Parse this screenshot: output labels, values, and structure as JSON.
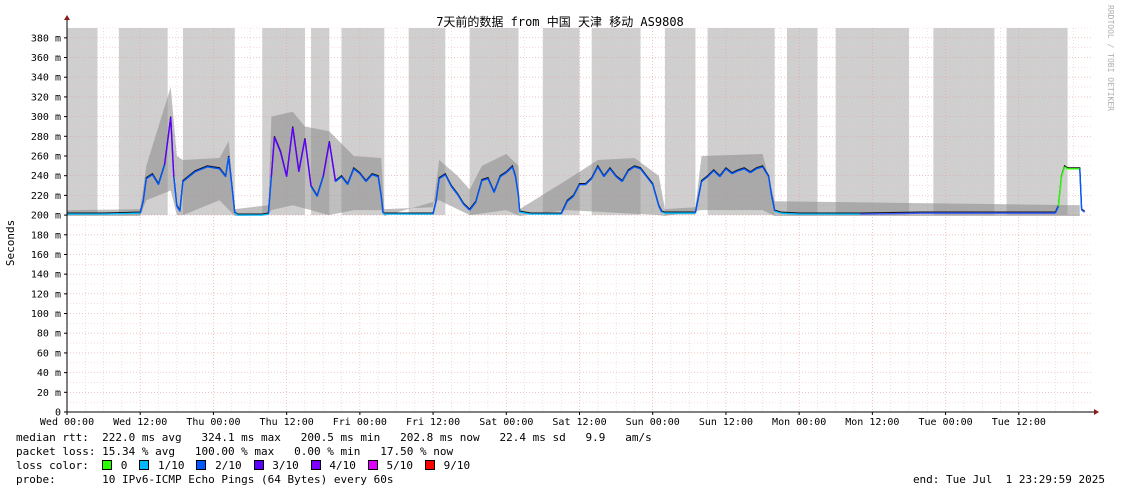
{
  "chart_data": {
    "type": "line",
    "title": "7天前的数据 from 中国 天津 移动 AS9808",
    "ylabel": "Seconds",
    "watermark": "RRDTOOL / TOBI OETIKER",
    "ylim": [
      0,
      380
    ],
    "y_unit": "m",
    "y_ticks": [
      "0",
      "20 m",
      "40 m",
      "60 m",
      "80 m",
      "100 m",
      "120 m",
      "140 m",
      "160 m",
      "180 m",
      "200 m",
      "220 m",
      "240 m",
      "260 m",
      "280 m",
      "300 m",
      "320 m",
      "340 m",
      "360 m",
      "380 m"
    ],
    "x_hours": 168,
    "x_ticks": [
      "Wed 00:00",
      "Wed 12:00",
      "Thu 00:00",
      "Thu 12:00",
      "Fri 00:00",
      "Fri 12:00",
      "Sat 00:00",
      "Sat 12:00",
      "Sun 00:00",
      "Sun 12:00",
      "Mon 00:00",
      "Mon 12:00",
      "Tue 00:00",
      "Tue 12:00"
    ],
    "series": [
      {
        "name": "median rtt",
        "unit": "ms",
        "points": [
          [
            0,
            202
          ],
          [
            6,
            202
          ],
          [
            12,
            203
          ],
          [
            12.5,
            215
          ],
          [
            13,
            238
          ],
          [
            14,
            242
          ],
          [
            15,
            232
          ],
          [
            16,
            252
          ],
          [
            17,
            300
          ],
          [
            17.5,
            240
          ],
          [
            18,
            210
          ],
          [
            18.5,
            205
          ],
          [
            19,
            235
          ],
          [
            21,
            245
          ],
          [
            23,
            250
          ],
          [
            25,
            248
          ],
          [
            26,
            240
          ],
          [
            26.5,
            260
          ],
          [
            27,
            232
          ],
          [
            27.5,
            203
          ],
          [
            28,
            201
          ],
          [
            32,
            201
          ],
          [
            33,
            202
          ],
          [
            33.5,
            240
          ],
          [
            34,
            280
          ],
          [
            35,
            265
          ],
          [
            36,
            240
          ],
          [
            37,
            290
          ],
          [
            38,
            245
          ],
          [
            39,
            278
          ],
          [
            40,
            230
          ],
          [
            41,
            220
          ],
          [
            42,
            240
          ],
          [
            43,
            275
          ],
          [
            44,
            235
          ],
          [
            45,
            240
          ],
          [
            46,
            232
          ],
          [
            47,
            248
          ],
          [
            48,
            243
          ],
          [
            49,
            235
          ],
          [
            50,
            242
          ],
          [
            51,
            240
          ],
          [
            51.5,
            220
          ],
          [
            51.8,
            203
          ],
          [
            52,
            202
          ],
          [
            60,
            202
          ],
          [
            60.5,
            215
          ],
          [
            61,
            238
          ],
          [
            62,
            242
          ],
          [
            63,
            230
          ],
          [
            64,
            222
          ],
          [
            65,
            212
          ],
          [
            66,
            206
          ],
          [
            67,
            214
          ],
          [
            68,
            236
          ],
          [
            69,
            238
          ],
          [
            70,
            224
          ],
          [
            71,
            240
          ],
          [
            72,
            244
          ],
          [
            73,
            250
          ],
          [
            73.5,
            240
          ],
          [
            74,
            220
          ],
          [
            74.2,
            204
          ],
          [
            76,
            202
          ],
          [
            81,
            202
          ],
          [
            82,
            215
          ],
          [
            83,
            220
          ],
          [
            84,
            232
          ],
          [
            85,
            232
          ],
          [
            86,
            238
          ],
          [
            87,
            250
          ],
          [
            88,
            240
          ],
          [
            89,
            248
          ],
          [
            90,
            240
          ],
          [
            91,
            235
          ],
          [
            92,
            246
          ],
          [
            93,
            250
          ],
          [
            94,
            248
          ],
          [
            95,
            240
          ],
          [
            96,
            232
          ],
          [
            97,
            210
          ],
          [
            97.5,
            204
          ],
          [
            98,
            203
          ],
          [
            103,
            203
          ],
          [
            104,
            235
          ],
          [
            105,
            240
          ],
          [
            106,
            246
          ],
          [
            107,
            240
          ],
          [
            108,
            248
          ],
          [
            109,
            243
          ],
          [
            110,
            246
          ],
          [
            111,
            248
          ],
          [
            112,
            244
          ],
          [
            113,
            248
          ],
          [
            114,
            250
          ],
          [
            115,
            240
          ],
          [
            115.5,
            220
          ],
          [
            116,
            205
          ],
          [
            117,
            203
          ],
          [
            120,
            202
          ],
          [
            130,
            202
          ],
          [
            140,
            203
          ],
          [
            145,
            203
          ],
          [
            150,
            203
          ],
          [
            162,
            203
          ],
          [
            162.5,
            210
          ],
          [
            163,
            240
          ],
          [
            163.5,
            250
          ],
          [
            164,
            248
          ],
          [
            165,
            248
          ],
          [
            166,
            248
          ],
          [
            166.3,
            206
          ],
          [
            166.8,
            204
          ]
        ]
      }
    ],
    "smoke_max": [
      [
        0,
        205
      ],
      [
        12,
        206
      ],
      [
        13,
        250
      ],
      [
        17,
        330
      ],
      [
        18,
        260
      ],
      [
        19,
        256
      ],
      [
        25,
        258
      ],
      [
        26.5,
        275
      ],
      [
        27.5,
        206
      ],
      [
        33,
        210
      ],
      [
        33.5,
        300
      ],
      [
        37,
        305
      ],
      [
        39,
        290
      ],
      [
        43,
        285
      ],
      [
        47,
        260
      ],
      [
        51.5,
        258
      ],
      [
        52,
        206
      ],
      [
        60,
        208
      ],
      [
        61,
        256
      ],
      [
        64,
        240
      ],
      [
        66,
        226
      ],
      [
        68,
        250
      ],
      [
        72,
        262
      ],
      [
        74,
        250
      ],
      [
        74.2,
        206
      ],
      [
        82,
        236
      ],
      [
        87,
        256
      ],
      [
        93,
        258
      ],
      [
        97,
        240
      ],
      [
        98,
        206
      ],
      [
        103,
        208
      ],
      [
        104,
        260
      ],
      [
        114,
        262
      ],
      [
        116,
        214
      ],
      [
        166,
        210
      ]
    ],
    "smoke_min": [
      [
        0,
        199
      ],
      [
        12,
        199
      ],
      [
        13,
        215
      ],
      [
        17,
        225
      ],
      [
        18,
        200
      ],
      [
        19,
        200
      ],
      [
        25,
        215
      ],
      [
        27.5,
        199
      ],
      [
        33,
        200
      ],
      [
        33.5,
        205
      ],
      [
        37,
        210
      ],
      [
        43,
        200
      ],
      [
        47,
        205
      ],
      [
        51.5,
        205
      ],
      [
        52,
        199
      ],
      [
        61,
        215
      ],
      [
        66,
        200
      ],
      [
        72,
        205
      ],
      [
        74.2,
        199
      ],
      [
        82,
        205
      ],
      [
        97,
        200
      ],
      [
        98,
        199
      ],
      [
        104,
        205
      ],
      [
        114,
        205
      ],
      [
        116,
        199
      ],
      [
        166,
        199
      ]
    ],
    "loss_rows": [
      {
        "label": "0",
        "color": "#26ff00"
      },
      {
        "label": "1/10",
        "color": "#00b8ff"
      },
      {
        "label": "2/10",
        "color": "#0059ff"
      },
      {
        "label": "3/10",
        "color": "#5e00ff"
      },
      {
        "label": "4/10",
        "color": "#7e00ff"
      },
      {
        "label": "5/10",
        "color": "#dd00ff"
      },
      {
        "label": "9/10",
        "color": "#ff0000"
      }
    ],
    "loss_bands_hours": [
      [
        0,
        5
      ],
      [
        8.5,
        16.5
      ],
      [
        19,
        27.5
      ],
      [
        32,
        39
      ],
      [
        40,
        43
      ],
      [
        45,
        52
      ],
      [
        56,
        62
      ],
      [
        66,
        74
      ],
      [
        78,
        84
      ],
      [
        86,
        94
      ],
      [
        98,
        103
      ],
      [
        105,
        116
      ],
      [
        118,
        123
      ],
      [
        126,
        138
      ],
      [
        142,
        152
      ],
      [
        154,
        164
      ]
    ]
  },
  "stats": {
    "median_label": "median rtt:",
    "median_values": "222.0 ms avg   324.1 ms max   200.5 ms min   202.8 ms now   22.4 ms sd   9.9   am/s",
    "loss_label": "packet loss:",
    "loss_values": "15.34 % avg   100.00 % max   0.00 % min   17.50 % now",
    "color_label": "loss color:",
    "probe_label": "probe:",
    "probe_value": "10 IPv6-ICMP Echo Pings (64 Bytes) every 60s",
    "end_label": "end: Tue Jul  1 23:29:59 2025"
  }
}
